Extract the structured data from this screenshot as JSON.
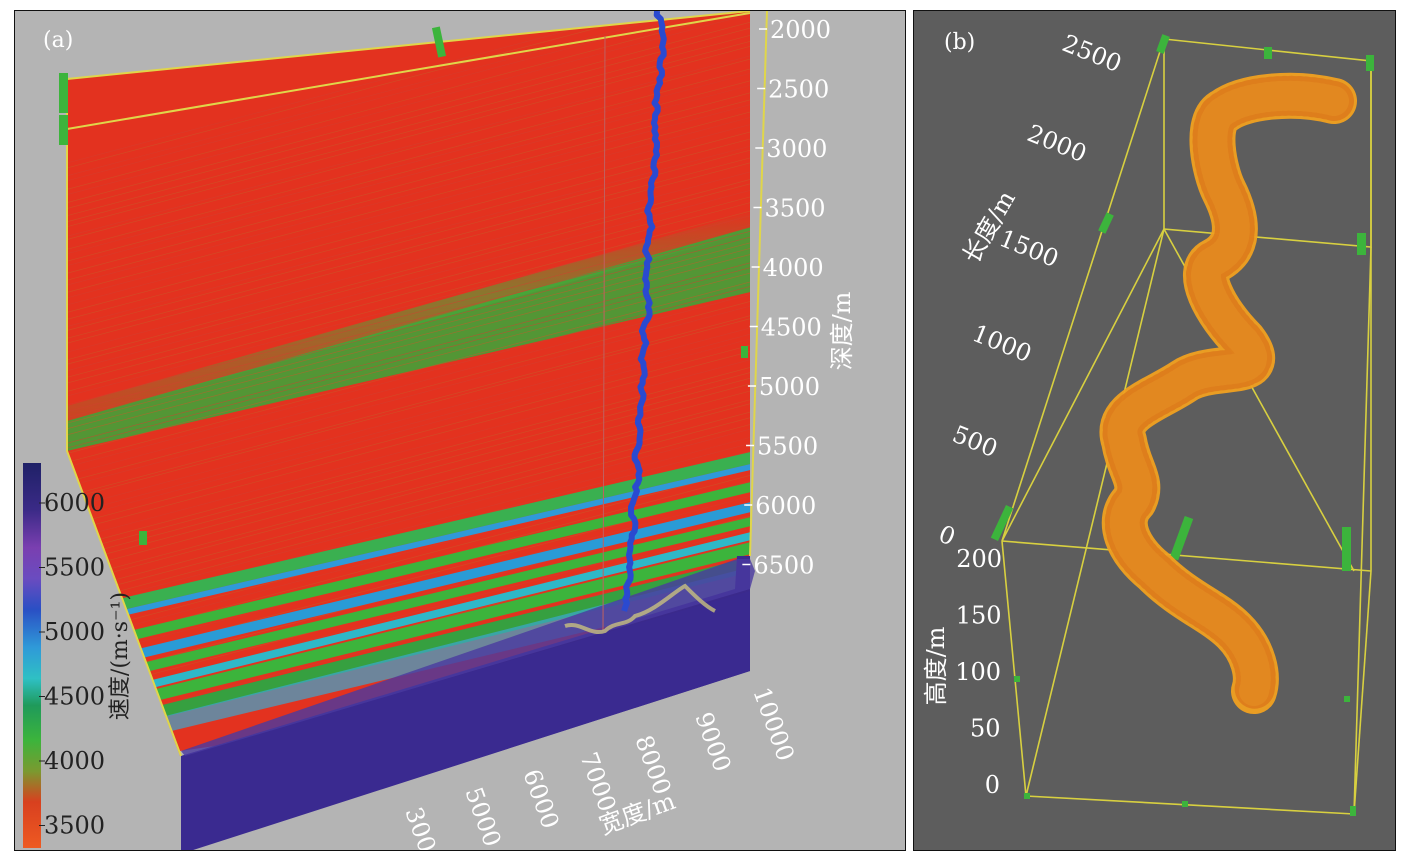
{
  "panel_a": {
    "label": "(a)",
    "depth_axis": {
      "title": "深度/m",
      "ticks": [
        "2000",
        "2500",
        "3000",
        "3500",
        "4000",
        "4500",
        "5000",
        "5500",
        "6000",
        "6500"
      ]
    },
    "width_axis": {
      "title": "宽度/m",
      "ticks": [
        "300",
        "5000",
        "6000",
        "7000",
        "8000",
        "9000",
        "10000"
      ]
    },
    "colorbar": {
      "title": "速度/(m·s⁻¹)",
      "ticks": [
        "6000",
        "5500",
        "5000",
        "4500",
        "4000",
        "3500"
      ],
      "colors": [
        "#23246b",
        "#6b2fa8",
        "#8a4fc0",
        "#2a56c6",
        "#2f9ad8",
        "#36c2c9",
        "#27a55a",
        "#3cb43c",
        "#8a9a30",
        "#e0301f",
        "#e8502a"
      ]
    }
  },
  "panel_b": {
    "label": "(b)",
    "length_axis": {
      "title": "长度/m",
      "ticks": [
        "2500",
        "2000",
        "1500",
        "1000",
        "500",
        "0"
      ]
    },
    "height_axis": {
      "title": "高度/m",
      "ticks": [
        "200",
        "150",
        "100",
        "50",
        "0"
      ]
    },
    "colors": {
      "box": "#d8d040",
      "body": "#f0a020",
      "marker": "#3cb43c"
    }
  }
}
